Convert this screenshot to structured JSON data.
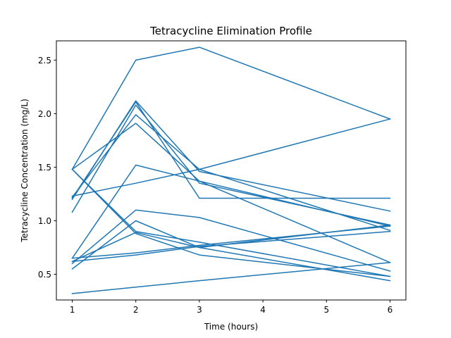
{
  "chart_data": {
    "type": "line",
    "title": "Tetracycline Elimination Profile",
    "xlabel": "Time (hours)",
    "ylabel": "Tetracycline Concentration (mg/L)",
    "xlim": [
      0.75,
      6.25
    ],
    "ylim": [
      0.26,
      2.68
    ],
    "xticks": [
      1,
      2,
      3,
      4,
      5,
      6
    ],
    "yticks": [
      0.5,
      1.0,
      1.5,
      2.0,
      2.5
    ],
    "ytick_labels": [
      "0.5",
      "1.0",
      "1.5",
      "2.0",
      "2.5"
    ],
    "grid": false,
    "line_color": "#1f77b4",
    "x": [
      1,
      2,
      3,
      6
    ],
    "series": [
      {
        "values": [
          1.48,
          2.5,
          2.62,
          1.95
        ]
      },
      {
        "values": [
          1.22,
          1.99,
          1.48,
          0.91
        ]
      },
      {
        "values": [
          1.2,
          2.12,
          1.46,
          1.09
        ]
      },
      {
        "values": [
          1.48,
          1.91,
          1.37,
          0.95
        ]
      },
      {
        "values": [
          1.21,
          2.11,
          1.21,
          1.21
        ]
      },
      {
        "values": [
          0.65,
          1.52,
          1.37,
          0.61
        ]
      },
      {
        "values": [
          0.6,
          1.1,
          1.03,
          0.53
        ]
      },
      {
        "values": [
          0.55,
          1.0,
          0.75,
          0.96
        ]
      },
      {
        "values": [
          1.48,
          0.9,
          0.8,
          0.48
        ]
      },
      {
        "values": [
          1.48,
          0.88,
          0.68,
          0.48
        ]
      },
      {
        "values": [
          0.62,
          0.89,
          0.75,
          0.44
        ]
      },
      {
        "values": [
          0.65,
          0.7,
          0.77,
          0.95
        ]
      },
      {
        "values": [
          0.32,
          0.38,
          0.44,
          0.61
        ]
      },
      {
        "values": [
          1.08,
          2.08,
          1.35,
          0.96
        ]
      },
      {
        "values": [
          1.23,
          1.35,
          1.48,
          1.95
        ]
      },
      {
        "values": [
          0.62,
          0.68,
          0.76,
          0.9
        ]
      }
    ]
  }
}
